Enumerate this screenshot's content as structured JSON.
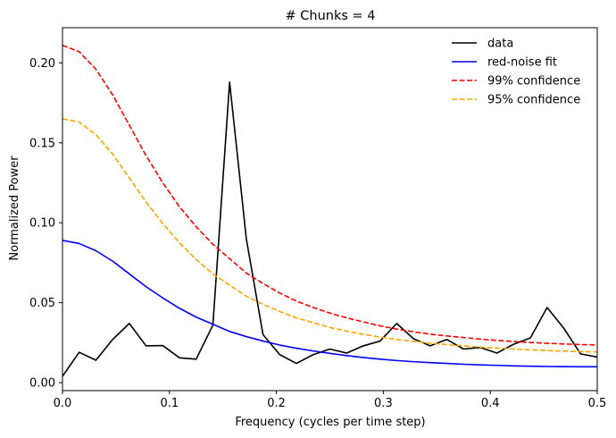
{
  "chart_data": {
    "type": "line",
    "title": "# Chunks = 4",
    "xlabel": "Frequency (cycles per time step)",
    "ylabel": "Normalized Power",
    "xlim": [
      0.0,
      0.5
    ],
    "ylim": [
      -0.005,
      0.222
    ],
    "xticks": [
      0.0,
      0.1,
      0.2,
      0.3,
      0.4,
      0.5
    ],
    "xtick_labels": [
      "0.0",
      "0.1",
      "0.2",
      "0.3",
      "0.4",
      "0.5"
    ],
    "yticks": [
      0.0,
      0.05,
      0.1,
      0.15,
      0.2
    ],
    "ytick_labels": [
      "0.00",
      "0.05",
      "0.10",
      "0.15",
      "0.20"
    ],
    "grid": false,
    "legend_position": "top-right",
    "x": [
      0.0,
      0.015625,
      0.03125,
      0.046875,
      0.0625,
      0.078125,
      0.09375,
      0.109375,
      0.125,
      0.140625,
      0.15625,
      0.171875,
      0.1875,
      0.203125,
      0.21875,
      0.234375,
      0.25,
      0.265625,
      0.28125,
      0.296875,
      0.3125,
      0.328125,
      0.34375,
      0.359375,
      0.375,
      0.390625,
      0.40625,
      0.421875,
      0.4375,
      0.453125,
      0.46875,
      0.484375,
      0.5
    ],
    "series": [
      {
        "name": "data",
        "color": "#000000",
        "dash": "solid",
        "values": [
          0.004,
          0.019,
          0.014,
          0.027,
          0.037,
          0.023,
          0.0232,
          0.0155,
          0.0147,
          0.036,
          0.188,
          0.09,
          0.03,
          0.0175,
          0.012,
          0.0175,
          0.021,
          0.0185,
          0.023,
          0.026,
          0.037,
          0.0275,
          0.023,
          0.027,
          0.021,
          0.022,
          0.0185,
          0.024,
          0.028,
          0.047,
          0.034,
          0.018,
          0.016
        ]
      },
      {
        "name": "red-noise fit",
        "color": "#0000ff",
        "dash": "solid",
        "values": [
          0.089,
          0.087,
          0.0825,
          0.076,
          0.068,
          0.06,
          0.053,
          0.0465,
          0.041,
          0.0365,
          0.032,
          0.0288,
          0.026,
          0.0235,
          0.0215,
          0.0198,
          0.0183,
          0.0169,
          0.0157,
          0.0147,
          0.0138,
          0.0131,
          0.0125,
          0.012,
          0.0115,
          0.0111,
          0.0108,
          0.0105,
          0.0103,
          0.0101,
          0.01,
          0.0099,
          0.0099
        ]
      },
      {
        "name": "99% confidence",
        "color": "#ff0000",
        "dash": "dashed",
        "values": [
          0.211,
          0.207,
          0.196,
          0.18,
          0.161,
          0.142,
          0.125,
          0.11,
          0.0975,
          0.0865,
          0.0775,
          0.0685,
          0.062,
          0.056,
          0.051,
          0.047,
          0.0435,
          0.0405,
          0.038,
          0.0355,
          0.0335,
          0.0318,
          0.0303,
          0.0292,
          0.0282,
          0.0272,
          0.0264,
          0.0257,
          0.0251,
          0.0246,
          0.0242,
          0.0238,
          0.0236
        ]
      },
      {
        "name": "95% confidence",
        "color": "#ffa500",
        "dash": "dashed",
        "values": [
          0.165,
          0.163,
          0.155,
          0.143,
          0.128,
          0.113,
          0.0995,
          0.0875,
          0.077,
          0.068,
          0.061,
          0.054,
          0.049,
          0.0445,
          0.0405,
          0.0375,
          0.0345,
          0.0322,
          0.0302,
          0.0285,
          0.027,
          0.0258,
          0.0247,
          0.0238,
          0.023,
          0.0222,
          0.0216,
          0.021,
          0.0205,
          0.0201,
          0.0197,
          0.0194,
          0.0192
        ]
      }
    ]
  }
}
